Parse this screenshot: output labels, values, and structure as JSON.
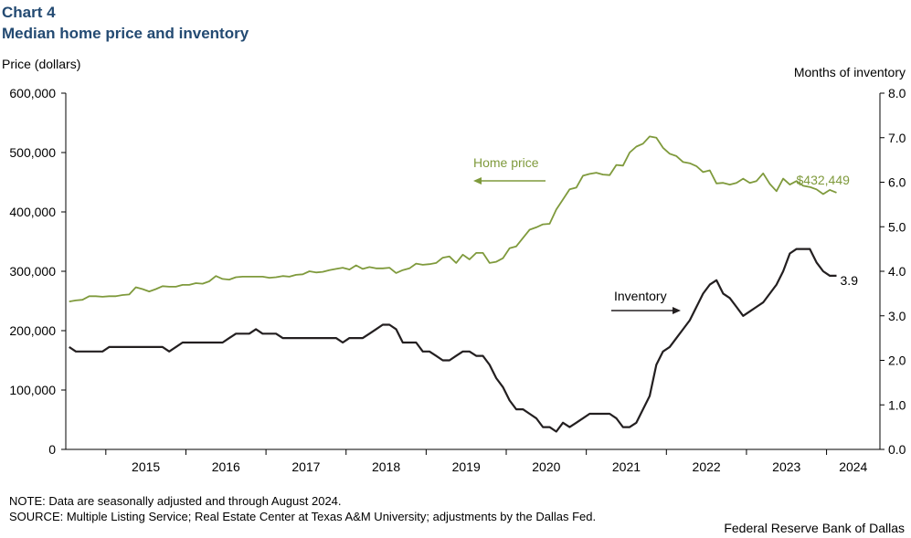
{
  "header": {
    "chart_number": "Chart 4",
    "title": "Median home price and inventory"
  },
  "footer": {
    "note": "NOTE: Data are seasonally adjusted and through August 2024.",
    "source": "SOURCE: Multiple  Listing Service; Real Estate Center at Texas A&M University;  adjustments by the Dallas Fed.",
    "credit": "Federal Reserve Bank of Dallas"
  },
  "colors": {
    "home_price": "#7f9a3c",
    "inventory": "#231f20",
    "title": "#234a72"
  },
  "chart_data": {
    "type": "line",
    "title": "Median home price and inventory",
    "ylabel": "Price (dollars)",
    "y2label": "Months  of inventory",
    "ylim": [
      0,
      600000
    ],
    "y2lim": [
      0,
      8
    ],
    "yticks": [
      "0",
      "100,000",
      "200,000",
      "300,000",
      "400,000",
      "500,000",
      "600,000"
    ],
    "y2ticks": [
      "0.0",
      "1.0",
      "2.0",
      "3.0",
      "4.0",
      "5.0",
      "6.0",
      "7.0",
      "8.0"
    ],
    "x_start": "2014-07",
    "x_end": "2024-08",
    "x_labels": [
      "2015",
      "2016",
      "2017",
      "2018",
      "2019",
      "2020",
      "2021",
      "2022",
      "2023",
      "2024"
    ],
    "grid": false,
    "series": [
      {
        "name": "Home price",
        "axis": "left",
        "color": "#7f9a3c",
        "annotation": "Home price",
        "end_label": "$432,449",
        "values": [
          249000,
          251000,
          252000,
          258000,
          258000,
          257000,
          258000,
          258000,
          260000,
          261000,
          273000,
          270000,
          266000,
          270000,
          275000,
          274000,
          274000,
          277000,
          277000,
          280000,
          279000,
          283000,
          292000,
          287000,
          286000,
          290000,
          291000,
          291000,
          291000,
          291000,
          289000,
          290000,
          292000,
          291000,
          294000,
          295000,
          300000,
          298000,
          299000,
          302000,
          304000,
          306000,
          303000,
          310000,
          304000,
          307000,
          305000,
          305000,
          306000,
          297000,
          302000,
          305000,
          313000,
          311000,
          312000,
          314000,
          323000,
          325000,
          314000,
          328000,
          320000,
          331000,
          331000,
          314000,
          316000,
          322000,
          339000,
          342000,
          356000,
          370000,
          374000,
          379000,
          380000,
          404000,
          421000,
          438000,
          441000,
          461000,
          464000,
          466000,
          463000,
          462000,
          479000,
          478000,
          500000,
          510000,
          515000,
          527000,
          525000,
          508000,
          498000,
          494000,
          484000,
          482000,
          477000,
          467000,
          470000,
          448000,
          449000,
          446000,
          449000,
          456000,
          449000,
          452000,
          465000,
          447000,
          435000,
          456000,
          446000,
          452000,
          444000,
          442000,
          438000,
          430000,
          437000,
          432449
        ]
      },
      {
        "name": "Inventory",
        "axis": "right",
        "color": "#231f20",
        "annotation": "Inventory",
        "end_label": "3.9",
        "values": [
          2.3,
          2.2,
          2.2,
          2.2,
          2.2,
          2.2,
          2.3,
          2.3,
          2.3,
          2.3,
          2.3,
          2.3,
          2.3,
          2.3,
          2.3,
          2.2,
          2.3,
          2.4,
          2.4,
          2.4,
          2.4,
          2.4,
          2.4,
          2.4,
          2.5,
          2.6,
          2.6,
          2.6,
          2.7,
          2.6,
          2.6,
          2.6,
          2.5,
          2.5,
          2.5,
          2.5,
          2.5,
          2.5,
          2.5,
          2.5,
          2.5,
          2.4,
          2.5,
          2.5,
          2.5,
          2.6,
          2.7,
          2.8,
          2.8,
          2.7,
          2.4,
          2.4,
          2.4,
          2.2,
          2.2,
          2.1,
          2.0,
          2.0,
          2.1,
          2.2,
          2.2,
          2.1,
          2.1,
          1.9,
          1.6,
          1.4,
          1.1,
          0.9,
          0.9,
          0.8,
          0.7,
          0.5,
          0.5,
          0.4,
          0.6,
          0.5,
          0.6,
          0.7,
          0.8,
          0.8,
          0.8,
          0.8,
          0.7,
          0.5,
          0.5,
          0.6,
          0.9,
          1.2,
          1.9,
          2.2,
          2.3,
          2.5,
          2.7,
          2.9,
          3.2,
          3.5,
          3.7,
          3.8,
          3.5,
          3.4,
          3.2,
          3.0,
          3.1,
          3.2,
          3.3,
          3.5,
          3.7,
          4.0,
          4.4,
          4.5,
          4.5,
          4.5,
          4.2,
          4.0,
          3.9,
          3.9
        ]
      }
    ]
  }
}
